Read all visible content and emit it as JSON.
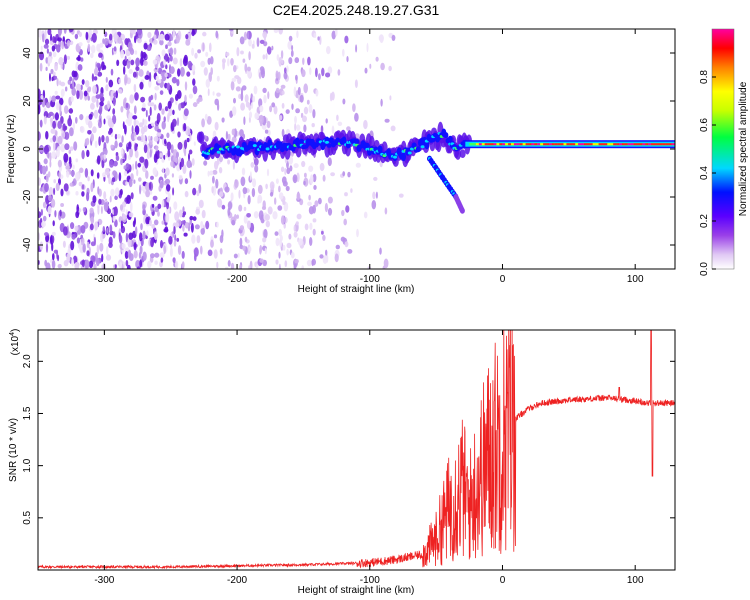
{
  "title": "C2E4.2025.248.19.27.G31",
  "chart_data": [
    {
      "type": "heatmap",
      "title": "C2E4.2025.248.19.27.G31",
      "xlabel": "Height of straight line (km)",
      "ylabel": "Frequency (Hz)",
      "xlim": [
        -350,
        130
      ],
      "ylim": [
        -50,
        50
      ],
      "xticks": [
        -300,
        -200,
        -100,
        0,
        100
      ],
      "xtick_labels": [
        "-300",
        "-200",
        "-100",
        "0",
        "100"
      ],
      "yticks": [
        -40,
        -20,
        0,
        20,
        40
      ],
      "ytick_labels": [
        "-40",
        "-20",
        "0",
        "20",
        "40"
      ],
      "colorbar": {
        "label": "Normalized spectral amplitude",
        "range": [
          0,
          1
        ],
        "ticks": [
          0.0,
          0.2,
          0.4,
          0.6,
          0.8
        ],
        "tick_labels": [
          "0.0",
          "0.2",
          "0.4",
          "0.6",
          "0.8"
        ],
        "colormap": [
          "#ffffff",
          "#d8b8f0",
          "#8c2ce0",
          "#5a00ff",
          "#0000ff",
          "#00e0ff",
          "#00ff40",
          "#d0ff00",
          "#ffff00",
          "#ff8000",
          "#ff0000",
          "#ff00a0"
        ]
      },
      "signal_track": [
        {
          "x": -225,
          "y": -1
        },
        {
          "x": -200,
          "y": 0
        },
        {
          "x": -175,
          "y": 1
        },
        {
          "x": -150,
          "y": 2
        },
        {
          "x": -125,
          "y": 3
        },
        {
          "x": -110,
          "y": 2
        },
        {
          "x": -100,
          "y": 0
        },
        {
          "x": -90,
          "y": -2
        },
        {
          "x": -80,
          "y": -3
        },
        {
          "x": -70,
          "y": -1
        },
        {
          "x": -60,
          "y": 2
        },
        {
          "x": -50,
          "y": 5
        },
        {
          "x": -45,
          "y": 6
        },
        {
          "x": -40,
          "y": 3
        },
        {
          "x": -35,
          "y": 0
        },
        {
          "x": -30,
          "y": 1
        },
        {
          "x": -20,
          "y": 2
        },
        {
          "x": 0,
          "y": 2
        },
        {
          "x": 50,
          "y": 2
        },
        {
          "x": 100,
          "y": 2
        },
        {
          "x": 130,
          "y": 2
        }
      ],
      "branch_track": [
        {
          "x": -55,
          "y": -4
        },
        {
          "x": -45,
          "y": -12
        },
        {
          "x": -35,
          "y": -20
        },
        {
          "x": -30,
          "y": -26
        }
      ]
    },
    {
      "type": "line",
      "xlabel": "Height of straight line (km)",
      "ylabel": "SNR (10 * v/v)",
      "ylabel_scale": "(x10",
      "ylabel_scale_exp": "4",
      "ylabel_scale_close": ")",
      "xlim": [
        -350,
        130
      ],
      "ylim": [
        0,
        2.3
      ],
      "xticks": [
        -300,
        -200,
        -100,
        0,
        100
      ],
      "xtick_labels": [
        "-300",
        "-200",
        "-100",
        "0",
        "100"
      ],
      "yticks": [
        0.5,
        1.0,
        1.5,
        2.0
      ],
      "ytick_labels": [
        "0.5",
        "1.0",
        "1.5",
        "2.0"
      ],
      "series": [
        {
          "name": "SNR",
          "color": "#ee2222",
          "envelope": [
            {
              "x": -350,
              "y": 0.03
            },
            {
              "x": -250,
              "y": 0.03
            },
            {
              "x": -200,
              "y": 0.04
            },
            {
              "x": -150,
              "y": 0.05
            },
            {
              "x": -100,
              "y": 0.07
            },
            {
              "x": -80,
              "y": 0.1
            },
            {
              "x": -60,
              "y": 0.15
            },
            {
              "x": -50,
              "y": 0.3
            },
            {
              "x": -40,
              "y": 0.6
            },
            {
              "x": -30,
              "y": 0.8
            },
            {
              "x": -25,
              "y": 0.6
            },
            {
              "x": -20,
              "y": 0.8
            },
            {
              "x": -10,
              "y": 1.1
            },
            {
              "x": 0,
              "y": 1.3
            },
            {
              "x": 10,
              "y": 1.45
            },
            {
              "x": 20,
              "y": 1.55
            },
            {
              "x": 30,
              "y": 1.6
            },
            {
              "x": 50,
              "y": 1.63
            },
            {
              "x": 80,
              "y": 1.65
            },
            {
              "x": 100,
              "y": 1.62
            },
            {
              "x": 110,
              "y": 1.6
            },
            {
              "x": 130,
              "y": 1.6
            }
          ],
          "spikes": [
            {
              "x": 88,
              "y": 1.75
            },
            {
              "x": 112,
              "y": 2.3
            },
            {
              "x": 113,
              "y": 0.9
            }
          ]
        }
      ]
    }
  ]
}
